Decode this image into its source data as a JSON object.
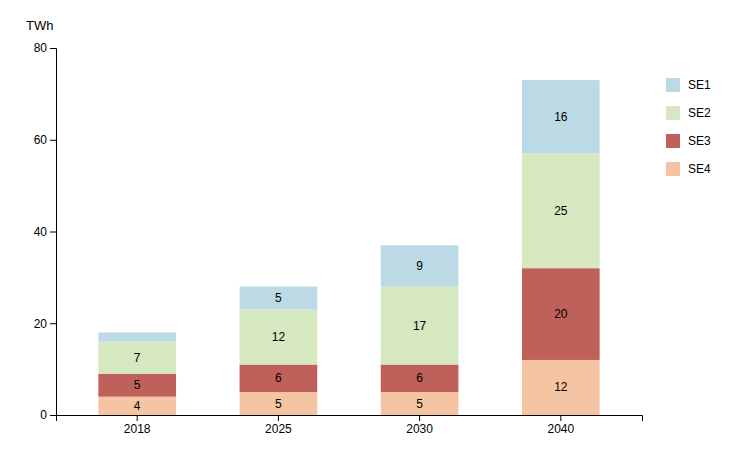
{
  "chart_data": {
    "type": "bar",
    "stacked": true,
    "data_labels": true,
    "categories": [
      "2018",
      "2025",
      "2030",
      "2040"
    ],
    "series": [
      {
        "name": "SE4",
        "color": "#f5c5a3",
        "values": [
          4,
          5,
          5,
          12
        ]
      },
      {
        "name": "SE3",
        "color": "#c0605a",
        "values": [
          5,
          6,
          6,
          20
        ]
      },
      {
        "name": "SE2",
        "color": "#d6e8c0",
        "values": [
          7,
          12,
          17,
          25
        ]
      },
      {
        "name": "SE1",
        "color": "#bcd9e6",
        "values": [
          2,
          5,
          9,
          16
        ],
        "value_labels": [
          null,
          "5",
          "9",
          "16"
        ]
      }
    ],
    "ylabel": "TWh",
    "ylim": [
      0,
      80
    ],
    "yticks": [
      0,
      20,
      40,
      60,
      80
    ],
    "grid": false,
    "legend": "right"
  }
}
